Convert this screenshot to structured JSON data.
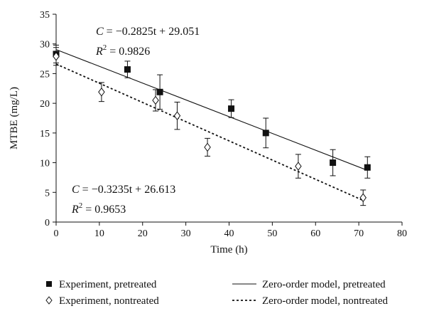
{
  "chart_data": {
    "type": "scatter",
    "xlabel": "Time (h)",
    "ylabel": "MTBE (mg/L)",
    "xlim": [
      0,
      80
    ],
    "ylim": [
      0,
      35
    ],
    "xticks": [
      "0",
      "10",
      "20",
      "30",
      "40",
      "50",
      "60",
      "70",
      "80"
    ],
    "yticks": [
      "0",
      "5",
      "10",
      "15",
      "20",
      "25",
      "30",
      "35"
    ],
    "grid": false,
    "legend_position": "bottom",
    "series": [
      {
        "name": "Experiment, pretreated",
        "marker": "square-filled",
        "points": [
          {
            "x": 0,
            "y": 28.3,
            "err": 1.5
          },
          {
            "x": 16.5,
            "y": 25.7,
            "err": 1.4
          },
          {
            "x": 24,
            "y": 21.9,
            "err": 2.9
          },
          {
            "x": 40.5,
            "y": 19.1,
            "err": 1.5
          },
          {
            "x": 48.5,
            "y": 15.0,
            "err": 2.5
          },
          {
            "x": 64,
            "y": 10.0,
            "err": 2.2
          },
          {
            "x": 72,
            "y": 9.2,
            "err": 1.8
          }
        ]
      },
      {
        "name": "Experiment, nontreated",
        "marker": "diamond-open",
        "points": [
          {
            "x": 0,
            "y": 27.9,
            "err": 1.5
          },
          {
            "x": 10.5,
            "y": 21.9,
            "err": 1.6
          },
          {
            "x": 23,
            "y": 20.5,
            "err": 1.8
          },
          {
            "x": 28,
            "y": 17.9,
            "err": 2.3
          },
          {
            "x": 35,
            "y": 12.6,
            "err": 1.5
          },
          {
            "x": 56,
            "y": 9.4,
            "err": 2.0
          },
          {
            "x": 71,
            "y": 4.1,
            "err": 1.3
          }
        ]
      },
      {
        "name": "Zero-order model, pretreated",
        "line": "solid",
        "slope": -0.2825,
        "intercept": 29.051,
        "x_range": [
          0,
          72
        ]
      },
      {
        "name": "Zero-order model, nontreated",
        "line": "dotted",
        "slope": -0.3235,
        "intercept": 26.613,
        "x_range": [
          0,
          71
        ]
      }
    ],
    "annotations": [
      {
        "lhs": "C",
        "rhs": " = −0.2825t + 29.051",
        "r2": "2",
        "r2_value": " = 0.9826"
      },
      {
        "lhs": "C",
        "rhs": " = −0.3235t + 26.613",
        "r2": "2",
        "r2_value": " = 0.9653"
      }
    ]
  }
}
